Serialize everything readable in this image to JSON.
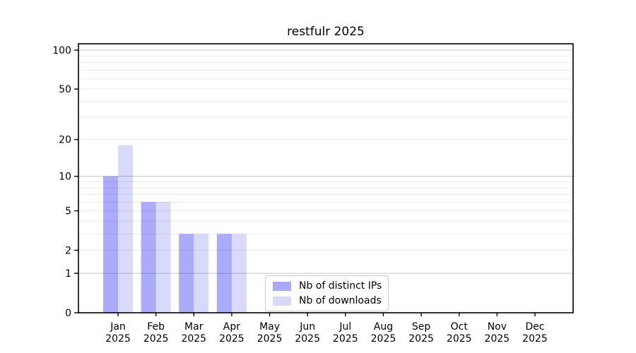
{
  "chart_data": {
    "type": "bar",
    "title": "restfulr 2025",
    "categories": [
      "Jan 2025",
      "Feb 2025",
      "Mar 2025",
      "Apr 2025",
      "May 2025",
      "Jun 2025",
      "Jul 2025",
      "Aug 2025",
      "Sep 2025",
      "Oct 2025",
      "Nov 2025",
      "Dec 2025"
    ],
    "series": [
      {
        "name": "Nb of distinct IPs",
        "color": "#aaaaf9",
        "base_color": "#0000ee",
        "alpha": 0.33,
        "values": [
          10,
          6,
          3,
          3,
          0,
          0,
          0,
          0,
          0,
          0,
          0,
          0
        ]
      },
      {
        "name": "Nb of downloads",
        "color": "#d9d9f8",
        "base_color": "#0000ee",
        "alpha": 0.15,
        "values": [
          18,
          6,
          3,
          3,
          0,
          0,
          0,
          0,
          0,
          0,
          0,
          0
        ]
      }
    ],
    "yscale": "log1p",
    "ylim": [
      0,
      100
    ],
    "ytick_labels": [
      0,
      1,
      2,
      5,
      10,
      20,
      50,
      100
    ],
    "gridlines_major": [
      1,
      10,
      100
    ],
    "gridlines_minor": [
      2,
      3,
      4,
      5,
      6,
      7,
      8,
      9,
      20,
      30,
      40,
      50,
      60,
      70,
      80,
      90
    ],
    "grid": true,
    "legend_position": "lower-center-inside",
    "xlabel": "",
    "ylabel": ""
  },
  "legend": {
    "items": [
      "Nb of distinct IPs",
      "Nb of downloads"
    ]
  },
  "colors": {
    "grid_major": "#c8c8c8",
    "grid_minor": "#ececec",
    "axis": "#000000",
    "legend_border": "#cbcbcb",
    "background": "#ffffff",
    "text": "#000000"
  }
}
